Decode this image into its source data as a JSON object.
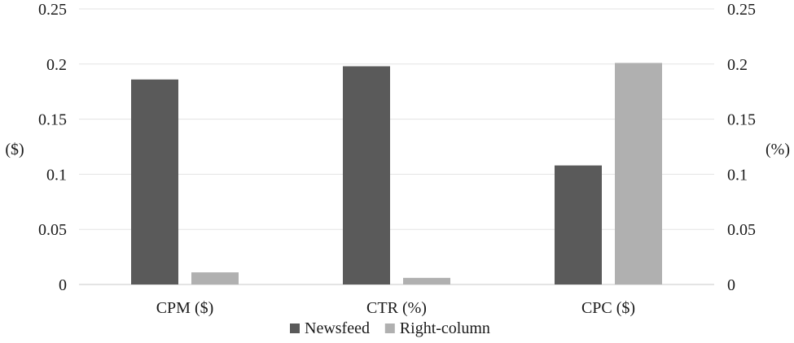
{
  "chart_data": {
    "type": "bar",
    "categories": [
      "CPM ($)",
      "CTR (%)",
      "CPC ($)"
    ],
    "series": [
      {
        "name": "Newsfeed",
        "values": [
          0.186,
          0.198,
          0.108
        ],
        "color": "#5a5a5a"
      },
      {
        "name": "Right-column",
        "values": [
          0.011,
          0.006,
          0.201
        ],
        "color": "#b0b0b0"
      }
    ],
    "ylim": [
      0,
      0.25
    ],
    "yticks": [
      "0",
      "0.05",
      "0.1",
      "0.15",
      "0.2",
      "0.25"
    ],
    "ytick_values": [
      0,
      0.05,
      0.1,
      0.15,
      0.2,
      0.25
    ],
    "ylabel_left": "($)",
    "ylabel_right": "(%)",
    "grid": true,
    "legend_position": "bottom"
  }
}
